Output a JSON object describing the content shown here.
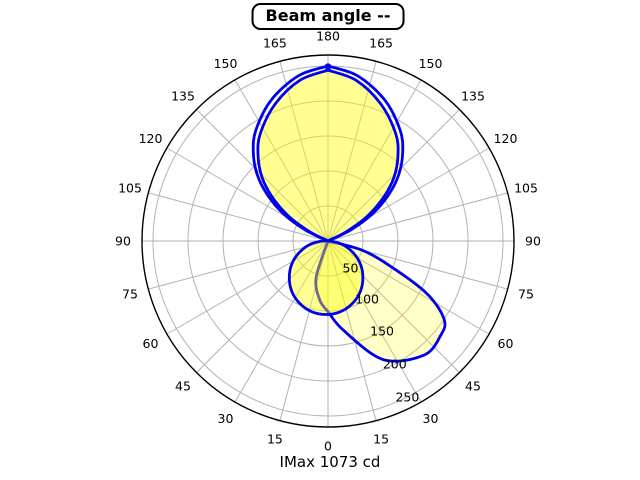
{
  "title": {
    "text": "Beam angle --"
  },
  "footer": {
    "imax_label": "IMax 1073 cd"
  },
  "chart_data": {
    "type": "polar-photometric-curve",
    "title": "Beam angle --",
    "annotation": "IMax 1073 cd",
    "imax_cd": 1073,
    "beam_angle_value": "--",
    "orientation": {
      "nadir_angle_deg": 0,
      "nadir_position": "bottom",
      "zenith_angle_deg": 180,
      "zenith_position": "top"
    },
    "angle_tick_step_deg": 15,
    "angle_tick_labels": [
      "180",
      "165",
      "150",
      "135",
      "120",
      "105",
      "90",
      "75",
      "60",
      "45",
      "30",
      "15",
      "0"
    ],
    "radial_tick_labels": [
      "50",
      "100",
      "150",
      "200",
      "250"
    ],
    "radial_ticks": [
      50,
      100,
      150,
      200,
      250
    ],
    "radial_max": 250,
    "grid": true,
    "colors": {
      "curve": "#0000ee",
      "fill": "#ffff00",
      "grid": "#b3b3b3",
      "frame": "#000000",
      "text": "#000000"
    },
    "fill_alpha_single": 0.22,
    "fill_alpha_double": 0.42,
    "curves": [
      {
        "name": "plane-1",
        "lobes": [
          {
            "id": "main-lobe-inner",
            "kind": "polar",
            "max_cd": 244,
            "peak_angle_deg": 180,
            "points": [
              [
                -114,
                0
              ],
              [
                -117,
                30
              ],
              [
                -122,
                65
              ],
              [
                -128,
                100
              ],
              [
                -134,
                131
              ],
              [
                -141,
                159
              ],
              [
                -148,
                182
              ],
              [
                -159,
                210
              ],
              [
                -170,
                233
              ],
              [
                -180,
                244
              ],
              [
                180,
                244
              ],
              [
                170,
                233
              ],
              [
                159,
                210
              ],
              [
                148,
                182
              ],
              [
                141,
                159
              ],
              [
                134,
                131
              ],
              [
                128,
                100
              ],
              [
                122,
                65
              ],
              [
                117,
                30
              ],
              [
                114,
                0
              ]
            ],
            "fill": "double"
          },
          {
            "id": "side-lobe-right",
            "kind": "polar",
            "max_cd": 213,
            "peak_angle_deg": 40,
            "points": [
              [
                -22,
                0
              ],
              [
                -18,
                55
              ],
              [
                -8,
                85
              ],
              [
                0,
                101
              ],
              [
                10,
                130
              ],
              [
                25,
                187
              ],
              [
                40,
                213
              ],
              [
                50,
                210
              ],
              [
                56,
                200
              ],
              [
                62,
                160
              ],
              [
                68,
                96
              ],
              [
                75,
                50
              ],
              [
                80,
                0
              ]
            ],
            "fill": "single"
          }
        ]
      },
      {
        "name": "plane-2",
        "lobes": [
          {
            "id": "main-lobe-outer",
            "kind": "polar",
            "max_cd": 250,
            "peak_angle_deg": 180,
            "points": [
              [
                -113,
                0
              ],
              [
                -116,
                36
              ],
              [
                -121,
                72
              ],
              [
                -127,
                107
              ],
              [
                -133,
                138
              ],
              [
                -140,
                166
              ],
              [
                -147,
                189
              ],
              [
                -158,
                217
              ],
              [
                -170,
                240
              ],
              [
                -180,
                250
              ],
              [
                180,
                250
              ],
              [
                170,
                240
              ],
              [
                158,
                217
              ],
              [
                147,
                189
              ],
              [
                140,
                166
              ],
              [
                133,
                138
              ],
              [
                127,
                107
              ],
              [
                121,
                72
              ],
              [
                116,
                36
              ],
              [
                113,
                0
              ]
            ],
            "fill": "none"
          },
          {
            "id": "down-lobe",
            "kind": "circle",
            "direction_deg_from_nadir": -3,
            "diameter_cd": 105,
            "fill": "double"
          }
        ]
      }
    ]
  }
}
